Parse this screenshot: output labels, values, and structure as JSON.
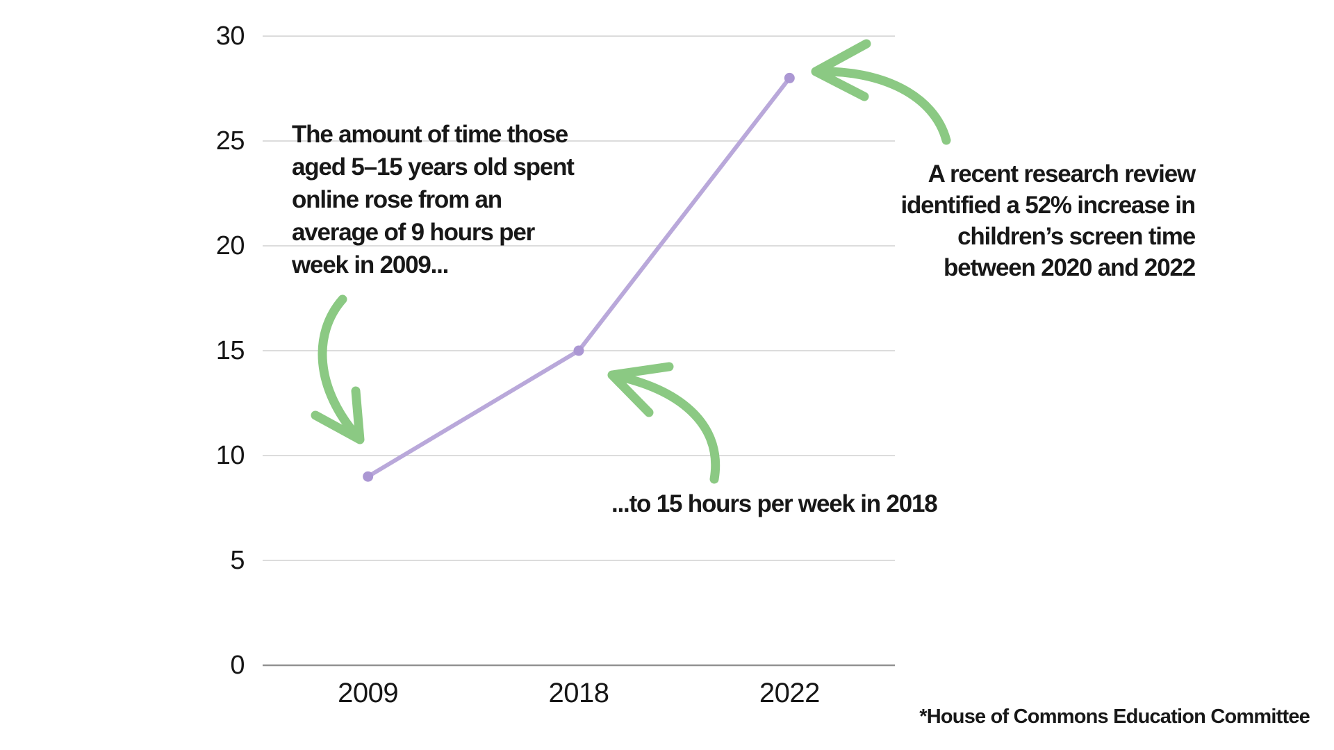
{
  "chart_data": {
    "type": "line",
    "categories": [
      "2009",
      "2018",
      "2022"
    ],
    "values": [
      9,
      15,
      28
    ],
    "yticks": [
      0,
      5,
      10,
      15,
      20,
      25,
      30
    ],
    "ylim": [
      0,
      30
    ],
    "xlabel": "",
    "ylabel": "",
    "title": "",
    "grid": true,
    "legend_position": "none",
    "annotations_on_chart": [
      {
        "target_point": "2009",
        "value": 9
      },
      {
        "target_point": "2018",
        "value": 15
      },
      {
        "target_point": "2022",
        "value": 28
      }
    ]
  },
  "annotations": {
    "left": {
      "lines": [
        "The amount of time those",
        "aged 5–15 years old spent",
        "online rose from an",
        "average of 9 hours per",
        "week in 2009..."
      ]
    },
    "middle": {
      "text": "...to 15 hours per week in 2018"
    },
    "right": {
      "lines": [
        "A recent research review",
        "identified a 52% increase in",
        "children’s screen time",
        "between 2020 and 2022"
      ]
    }
  },
  "source_note": "*House of Commons Education Committee",
  "colors": {
    "line": "#b9a8da",
    "marker": "#ab97d3",
    "arrow_green": "#8bc983",
    "gridline": "#dcdcdc",
    "axis_line": "#919191",
    "text": "#1f1f1f",
    "background": "#ffffff"
  }
}
